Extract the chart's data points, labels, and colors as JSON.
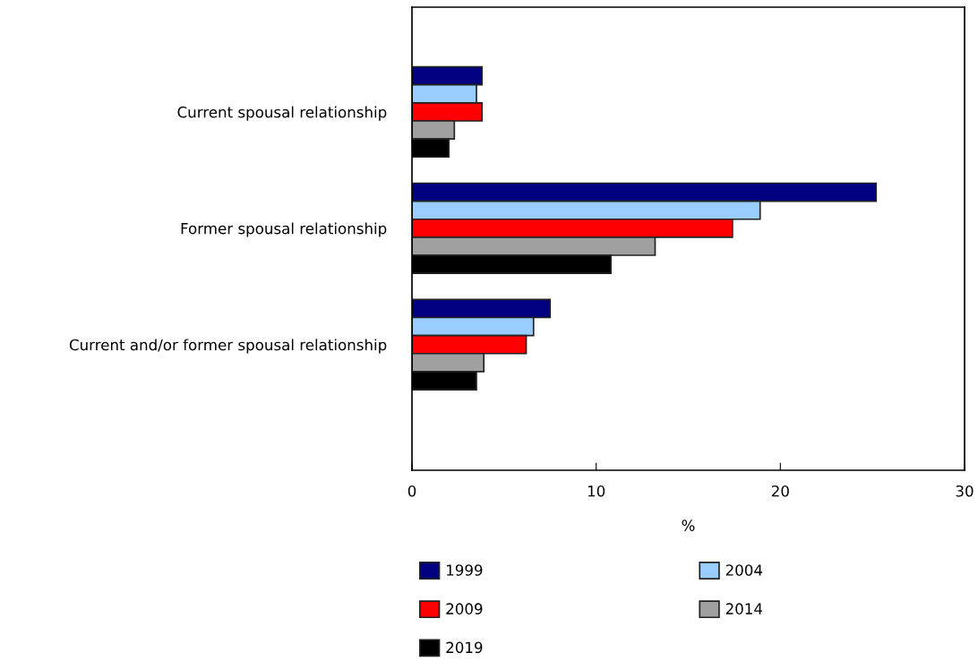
{
  "chart_data": {
    "type": "bar",
    "orientation": "horizontal",
    "xlabel": "%",
    "categories": [
      "Current spousal relationship",
      "Former spousal relationship",
      "Current and/or former spousal relationship"
    ],
    "series": [
      {
        "name": "1999",
        "color": "#000080",
        "values": [
          3.8,
          25.2,
          7.5
        ]
      },
      {
        "name": "2004",
        "color": "#99ccff",
        "values": [
          3.5,
          18.9,
          6.6
        ]
      },
      {
        "name": "2009",
        "color": "#ff0000",
        "values": [
          3.8,
          17.4,
          6.2
        ]
      },
      {
        "name": "2014",
        "color": "#a0a0a0",
        "values": [
          2.3,
          13.2,
          3.9
        ]
      },
      {
        "name": "2019",
        "color": "#000000",
        "values": [
          2.0,
          10.8,
          3.5
        ]
      }
    ],
    "xlim": [
      0,
      30
    ],
    "xticks": [
      0,
      10,
      20,
      30
    ],
    "grid": false,
    "legend": "bottom"
  }
}
